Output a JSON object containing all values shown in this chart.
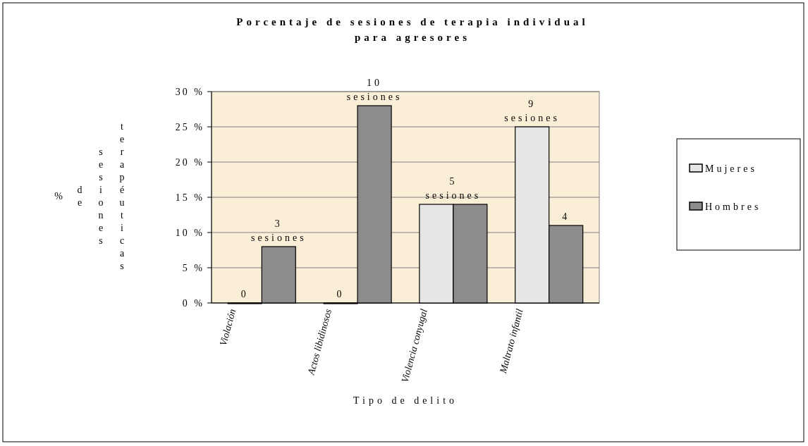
{
  "chart_data": {
    "type": "bar",
    "title": "Porcentaje de sesiones de terapia individual para agresores",
    "xlabel": "Tipo de delito",
    "ylabel": "% de sesiones terapéuticas",
    "categories": [
      "Violación",
      "Actos libidinosos",
      "Violencia conyugal",
      "Maltrato infantil"
    ],
    "series": [
      {
        "name": "Mujeres",
        "color": "#e6e6e6",
        "values": [
          0,
          0,
          14,
          25
        ]
      },
      {
        "name": "Hombres",
        "color": "#8c8c8c",
        "values": [
          8,
          28,
          14,
          11
        ]
      }
    ],
    "annotations": [
      {
        "text": "0",
        "x": "Violación",
        "y": 0
      },
      "3 sesiones",
      {
        "text": "0",
        "x": "Actos libidinosos",
        "y": 0
      },
      "10 sesiones",
      {
        "text": "5 sesiones",
        "x": "Violencia conyugal",
        "y": 14
      },
      {
        "text": "9 sesiones",
        "x": "Maltrato infantil",
        "y": 25
      },
      "4"
    ],
    "ylim": [
      0,
      30
    ],
    "yticks": [
      {
        "value": 0,
        "label": "0 %"
      },
      {
        "value": 5,
        "label": "5 %"
      },
      {
        "value": 10,
        "label": "10 %"
      },
      {
        "value": 15,
        "label": "15 %"
      },
      {
        "value": 20,
        "label": "20 %"
      },
      {
        "value": 25,
        "label": "25 %"
      },
      {
        "value": 30,
        "label": "30 %"
      }
    ],
    "grid": "y",
    "legend": "right"
  }
}
